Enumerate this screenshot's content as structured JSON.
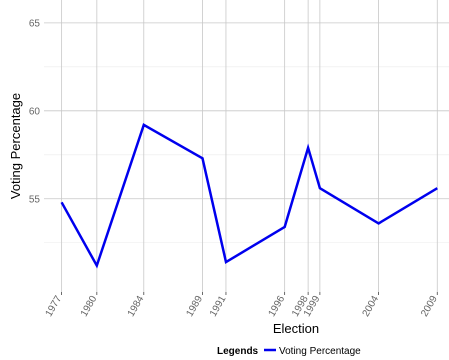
{
  "chart_data": {
    "type": "line",
    "x": [
      1977,
      1980,
      1984,
      1989,
      1991,
      1996,
      1998,
      1999,
      2004,
      2009
    ],
    "x_tick_labels": [
      "1977",
      "1980",
      "1984",
      "1989",
      "1991",
      "1996",
      "1998",
      "1999",
      "2004",
      "2009"
    ],
    "series": [
      {
        "name": "Voting Percentage",
        "color": "#0000ee",
        "values": [
          54.8,
          51.2,
          59.2,
          57.3,
          51.4,
          53.4,
          57.9,
          55.6,
          53.6,
          55.6
        ]
      }
    ],
    "xlabel": "Election",
    "ylabel": "Voting Percentage",
    "y_ticks": [
      55,
      60,
      65
    ],
    "ylim": [
      49.7,
      66.3
    ],
    "grid": true,
    "legend": {
      "title": "Legends",
      "position": "bottom"
    }
  }
}
